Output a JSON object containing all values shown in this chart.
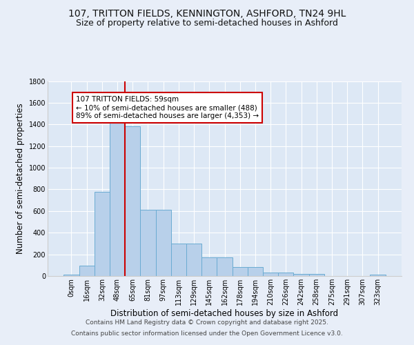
{
  "title": "107, TRITTON FIELDS, KENNINGTON, ASHFORD, TN24 9HL",
  "subtitle": "Size of property relative to semi-detached houses in Ashford",
  "xlabel": "Distribution of semi-detached houses by size in Ashford",
  "ylabel": "Number of semi-detached properties",
  "footer1": "Contains HM Land Registry data © Crown copyright and database right 2025.",
  "footer2": "Contains public sector information licensed under the Open Government Licence v3.0.",
  "categories": [
    "0sqm",
    "16sqm",
    "32sqm",
    "48sqm",
    "65sqm",
    "81sqm",
    "97sqm",
    "113sqm",
    "129sqm",
    "145sqm",
    "162sqm",
    "178sqm",
    "194sqm",
    "210sqm",
    "226sqm",
    "242sqm",
    "258sqm",
    "275sqm",
    "291sqm",
    "307sqm",
    "323sqm"
  ],
  "bar_heights": [
    10,
    95,
    780,
    1445,
    1385,
    610,
    610,
    300,
    300,
    175,
    175,
    80,
    80,
    30,
    30,
    20,
    20,
    0,
    0,
    0,
    15
  ],
  "bar_color": "#b8d0ea",
  "bar_edge_color": "#6aabd2",
  "annotation_box_text": "107 TRITTON FIELDS: 59sqm\n← 10% of semi-detached houses are smaller (488)\n89% of semi-detached houses are larger (4,353) →",
  "annotation_box_color": "#ffffff",
  "annotation_box_edge_color": "#cc0000",
  "vline_x": 3.5,
  "vline_color": "#cc0000",
  "ylim": [
    0,
    1800
  ],
  "yticks": [
    0,
    200,
    400,
    600,
    800,
    1000,
    1200,
    1400,
    1600,
    1800
  ],
  "bg_color": "#e8eef8",
  "plot_bg_color": "#dde8f5",
  "grid_color": "#ffffff",
  "title_fontsize": 10,
  "subtitle_fontsize": 9,
  "axis_label_fontsize": 8.5,
  "tick_fontsize": 7,
  "footer_fontsize": 6.5,
  "annot_fontsize": 7.5
}
